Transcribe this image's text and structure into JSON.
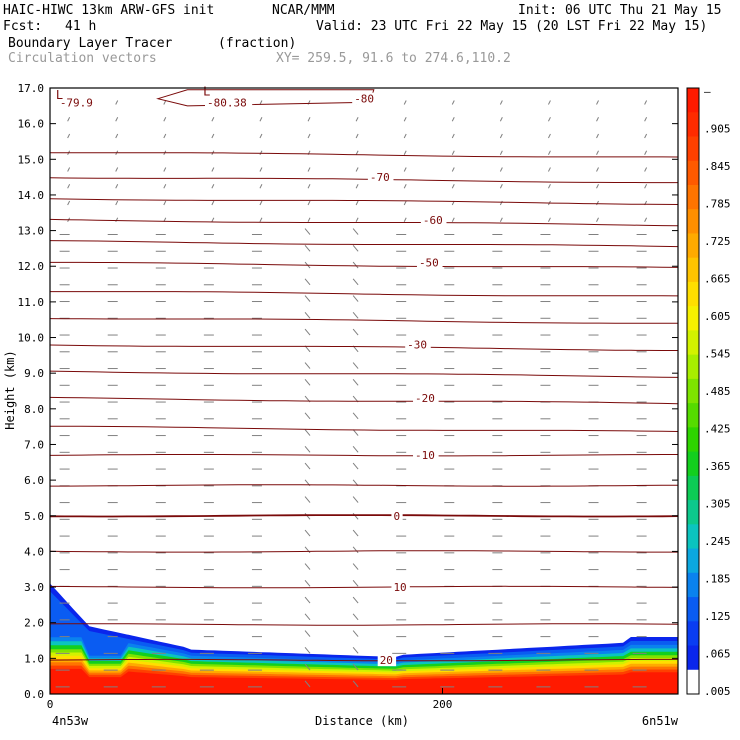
{
  "header": {
    "model": "HAIC-HIWC 13km ARW-GFS init",
    "org": "NCAR/MMM",
    "init": "Init: 06 UTC Thu 21 May 15",
    "fcst_label": "Fcst:",
    "fcst_value": "41 h",
    "valid": "Valid: 23 UTC Fri 22 May 15 (20 LST Fri 22 May 15)",
    "field": "Boundary Layer Tracer",
    "units": "(fraction)",
    "vectors": "Circulation vectors",
    "xy": "XY= 259.5, 91.6 to 274.6,110.2"
  },
  "colors": {
    "contour": "#7a0a0a",
    "vector": "#808080",
    "frame": "#000000"
  },
  "chart_data": {
    "type": "cross-section",
    "ylabel": "Height (km)",
    "xlabel": "Distance (km)",
    "ylim": [
      0,
      17
    ],
    "xlim": [
      0,
      320
    ],
    "y_ticks": [
      "0.0",
      "1.0",
      "2.0",
      "3.0",
      "4.0",
      "5.0",
      "6.0",
      "7.0",
      "8.0",
      "9.0",
      "10.0",
      "11.0",
      "12.0",
      "13.0",
      "14.0",
      "15.0",
      "16.0",
      "17.0"
    ],
    "x_ticks": [
      {
        "value": 0,
        "label": "0"
      },
      {
        "value": 200,
        "label": "200"
      }
    ],
    "x_endpoints": {
      "left": "4n53w",
      "right": "6n51w"
    },
    "temperature_contours": [
      {
        "label": "20",
        "x": 168,
        "y": 0.95
      },
      {
        "label": "10",
        "x": 175,
        "y": 3.0
      },
      {
        "label": "0",
        "x": 175,
        "y": 5.0
      },
      {
        "label": "-10",
        "x": 186,
        "y": 6.7
      },
      {
        "label": "-20",
        "x": 186,
        "y": 8.3
      },
      {
        "label": "-30",
        "x": 182,
        "y": 9.8
      },
      {
        "label": "-50",
        "x": 188,
        "y": 12.1
      },
      {
        "label": "-60",
        "x": 190,
        "y": 13.3
      },
      {
        "label": "-70",
        "x": 163,
        "y": 14.5
      },
      {
        "label": "-80",
        "x": 155,
        "y": 16.7
      },
      {
        "label": "-80.38",
        "x": 80,
        "y": 16.6
      },
      {
        "label": "-79.9",
        "x": 5,
        "y": 16.6
      }
    ],
    "extremum_markers": [
      {
        "label": "L",
        "x": 3,
        "y": 16.8
      },
      {
        "label": "L",
        "x": 78,
        "y": 16.9
      }
    ],
    "colorbar": {
      "labels": [
        "–",
        ".905",
        ".845",
        ".785",
        ".725",
        ".665",
        ".605",
        ".545",
        ".485",
        ".425",
        ".365",
        ".305",
        ".245",
        ".185",
        ".125",
        ".065",
        ".005"
      ],
      "colors": [
        "#ff1a00",
        "#ff2b00",
        "#ff4000",
        "#ff5a00",
        "#ff7400",
        "#ff8f00",
        "#ffaa00",
        "#ffc400",
        "#ffde00",
        "#f6f000",
        "#d2f200",
        "#a8ee00",
        "#7ee400",
        "#55db00",
        "#2ed400",
        "#13cf1e",
        "#0ccb55",
        "#0cc88c",
        "#0bc4bf",
        "#0ba8e0",
        "#0a82ee",
        "#0a5cf2",
        "#0a3df2",
        "#0a26ec",
        "#ffffff"
      ]
    }
  }
}
